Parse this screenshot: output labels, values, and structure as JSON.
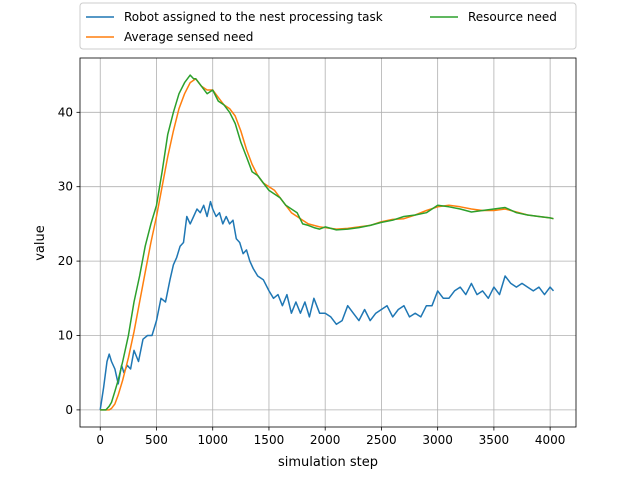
{
  "chart_data": {
    "type": "line",
    "title": "",
    "xlabel": "simulation step",
    "ylabel": "value",
    "xlim": [
      -180,
      4230
    ],
    "ylim": [
      -2.3,
      47.3
    ],
    "xticks": [
      0,
      500,
      1000,
      1500,
      2000,
      2500,
      3000,
      3500,
      4000
    ],
    "yticks": [
      0,
      10,
      20,
      30,
      40
    ],
    "grid": true,
    "legend_position": "top-center-outside",
    "colors": {
      "blue": "#1f77b4",
      "orange": "#ff7f0e",
      "green": "#2ca02c"
    },
    "series": [
      {
        "name": "Robot assigned to the nest processing task",
        "color": "#1f77b4",
        "x": [
          0,
          30,
          60,
          80,
          100,
          130,
          160,
          190,
          210,
          240,
          270,
          300,
          340,
          380,
          420,
          460,
          500,
          540,
          580,
          620,
          650,
          680,
          710,
          740,
          770,
          800,
          830,
          860,
          890,
          920,
          950,
          980,
          1000,
          1030,
          1060,
          1090,
          1120,
          1150,
          1180,
          1210,
          1240,
          1270,
          1300,
          1330,
          1360,
          1400,
          1450,
          1500,
          1540,
          1580,
          1620,
          1660,
          1700,
          1740,
          1780,
          1820,
          1860,
          1900,
          1950,
          2000,
          2050,
          2100,
          2150,
          2200,
          2250,
          2300,
          2350,
          2400,
          2450,
          2500,
          2550,
          2600,
          2650,
          2700,
          2750,
          2800,
          2850,
          2900,
          2950,
          3000,
          3050,
          3100,
          3150,
          3200,
          3250,
          3300,
          3350,
          3400,
          3450,
          3500,
          3550,
          3600,
          3650,
          3700,
          3750,
          3800,
          3850,
          3900,
          3950,
          4000,
          4030
        ],
        "values": [
          0,
          3,
          6.5,
          7.5,
          6.5,
          5.5,
          3.5,
          6,
          5,
          6,
          5.5,
          8,
          6.5,
          9.5,
          10,
          10,
          12,
          15,
          14.5,
          17.5,
          19.5,
          20.5,
          22,
          22.5,
          26,
          25,
          26,
          27,
          26.5,
          27.5,
          26,
          28,
          27,
          26,
          26.5,
          25,
          26,
          25,
          25.5,
          23,
          22.5,
          21,
          21.5,
          20,
          19,
          18,
          17.5,
          16,
          15,
          15.5,
          14,
          15.5,
          13,
          14.5,
          13,
          14.5,
          12.5,
          15,
          13,
          13,
          12.5,
          11.5,
          12,
          14,
          13,
          12,
          13.5,
          12,
          13,
          13.5,
          14,
          12.5,
          13.5,
          14,
          12.5,
          13,
          12.5,
          14,
          14,
          16,
          15,
          15,
          16,
          16.5,
          15.5,
          17,
          15.5,
          16,
          15,
          16.5,
          15.5,
          18,
          17,
          16.5,
          17,
          16.5,
          16,
          16.5,
          15.5,
          16.5,
          16
        ]
      },
      {
        "name": "Average sensed need",
        "color": "#ff7f0e",
        "x": [
          0,
          50,
          80,
          100,
          130,
          160,
          200,
          250,
          300,
          350,
          400,
          450,
          500,
          550,
          600,
          650,
          700,
          750,
          800,
          850,
          900,
          950,
          1000,
          1050,
          1100,
          1150,
          1200,
          1250,
          1300,
          1350,
          1400,
          1450,
          1500,
          1550,
          1600,
          1650,
          1700,
          1750,
          1800,
          1850,
          1900,
          1950,
          2000,
          2100,
          2200,
          2300,
          2400,
          2500,
          2600,
          2700,
          2800,
          2900,
          3000,
          3100,
          3200,
          3300,
          3400,
          3500,
          3600,
          3700,
          3800,
          3900,
          4000,
          4030
        ],
        "values": [
          0,
          0,
          0,
          0.2,
          0.8,
          2,
          4,
          7,
          10.5,
          14.5,
          18.5,
          22.5,
          26,
          30,
          34,
          37.5,
          40.5,
          42.5,
          44,
          44.5,
          43.5,
          43,
          43,
          42,
          41,
          40.5,
          39.5,
          37.5,
          35,
          33,
          31.5,
          30.5,
          30,
          29.5,
          28.5,
          27.5,
          26.5,
          26,
          25.5,
          25,
          24.8,
          24.6,
          24.5,
          24.3,
          24.4,
          24.6,
          24.8,
          25.3,
          25.6,
          25.7,
          26.2,
          26.8,
          27.3,
          27.5,
          27.3,
          27,
          26.8,
          26.8,
          27,
          26.6,
          26.2,
          26,
          25.8,
          25.7
        ]
      },
      {
        "name": "Resource need",
        "color": "#2ca02c",
        "x": [
          0,
          50,
          80,
          100,
          130,
          160,
          200,
          250,
          300,
          350,
          400,
          450,
          500,
          550,
          600,
          650,
          700,
          750,
          800,
          830,
          850,
          900,
          950,
          1000,
          1050,
          1100,
          1150,
          1200,
          1250,
          1300,
          1350,
          1400,
          1450,
          1500,
          1550,
          1600,
          1650,
          1700,
          1750,
          1800,
          1850,
          1900,
          1950,
          2000,
          2100,
          2200,
          2300,
          2400,
          2500,
          2600,
          2700,
          2800,
          2900,
          3000,
          3100,
          3200,
          3300,
          3400,
          3500,
          3600,
          3700,
          3800,
          3900,
          4000,
          4030
        ],
        "values": [
          0,
          0,
          0.5,
          1,
          2.5,
          4,
          6.5,
          10,
          14.5,
          18,
          22,
          25,
          27.5,
          32,
          37,
          40,
          42.5,
          44,
          45,
          44.5,
          44.5,
          43.5,
          42.5,
          43,
          41.5,
          41,
          40,
          38.5,
          36,
          34,
          32,
          31.5,
          30.5,
          29.5,
          29,
          28.5,
          27.5,
          27,
          26.5,
          25,
          24.8,
          24.5,
          24.3,
          24.6,
          24.2,
          24.3,
          24.5,
          24.8,
          25.2,
          25.5,
          26,
          26.2,
          26.5,
          27.5,
          27.3,
          27,
          26.6,
          26.8,
          27,
          27.2,
          26.5,
          26.2,
          26,
          25.8,
          25.7
        ]
      }
    ]
  }
}
